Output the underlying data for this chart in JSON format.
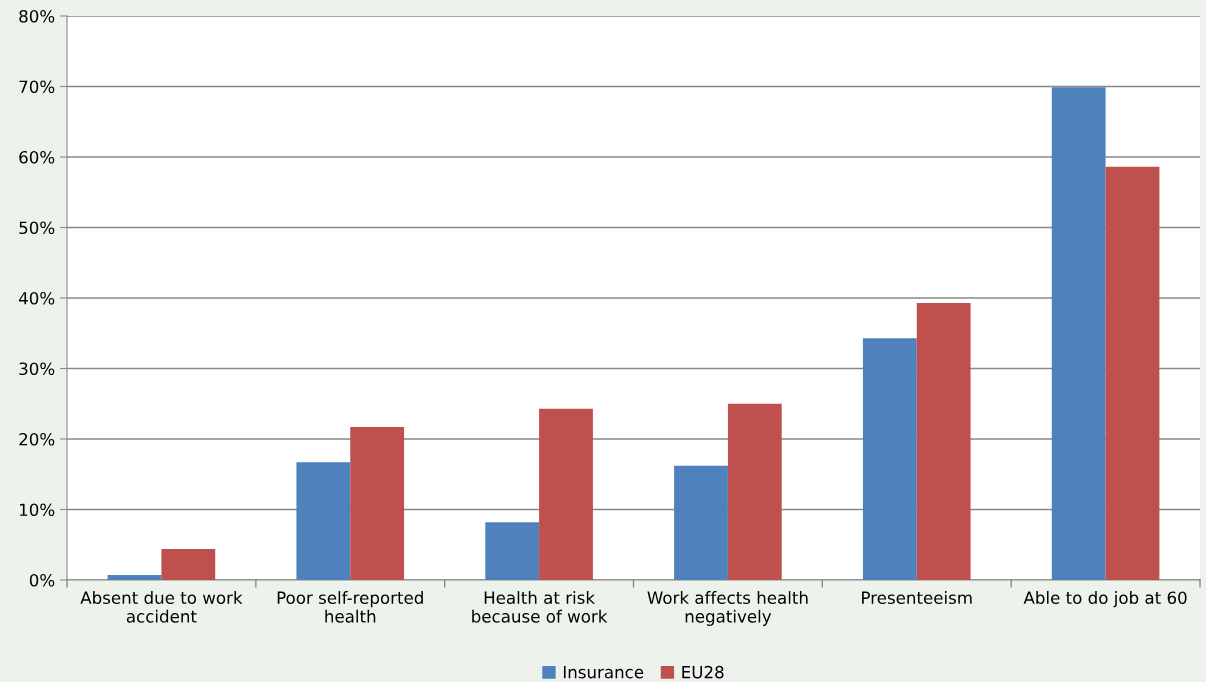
{
  "chart_data": {
    "type": "bar",
    "categories": [
      "Absent due to work\naccident",
      "Poor self-reported\nhealth",
      "Health at risk\nbecause of work",
      "Work affects health\nnegatively",
      "Presenteeism",
      "Able to do job at 60"
    ],
    "series": [
      {
        "name": "Insurance",
        "color": "#4f81bd",
        "values": [
          0.7,
          16.7,
          8.2,
          16.2,
          34.3,
          69.9
        ]
      },
      {
        "name": "EU28",
        "color": "#c0504d",
        "values": [
          4.4,
          21.7,
          24.3,
          25.0,
          39.3,
          58.6
        ]
      }
    ],
    "ylim": [
      0,
      80
    ],
    "yticks": [
      {
        "value": 0,
        "label": "0%"
      },
      {
        "value": 10,
        "label": "10%"
      },
      {
        "value": 20,
        "label": "20%"
      },
      {
        "value": 30,
        "label": "30%"
      },
      {
        "value": 40,
        "label": "40%"
      },
      {
        "value": 50,
        "label": "50%"
      },
      {
        "value": 60,
        "label": "60%"
      },
      {
        "value": 70,
        "label": "70%"
      },
      {
        "value": 80,
        "label": "80%"
      }
    ],
    "grid": "y",
    "legend": "bottom"
  }
}
